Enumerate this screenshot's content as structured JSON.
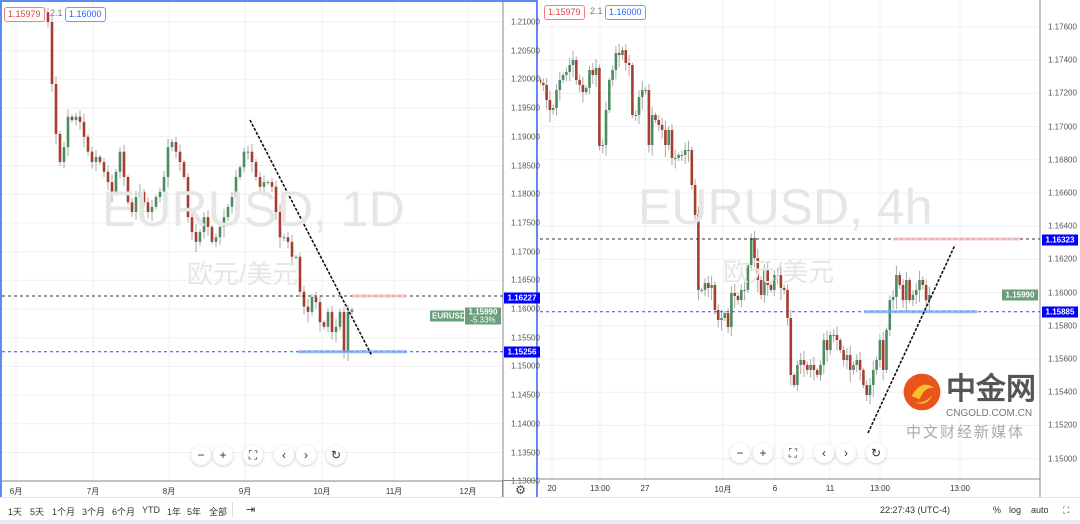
{
  "symbol": "EURUSD",
  "left": {
    "watermark_title": "EURUSD, 1D",
    "watermark_sub": "欧元/美元",
    "bid": "1.15979",
    "spread": "2.1",
    "ask": "1.16000",
    "axis_ticks": [
      "1.21000",
      "1.20500",
      "1.20000",
      "1.19500",
      "1.19000",
      "1.18500",
      "1.18000",
      "1.17500",
      "1.17000",
      "1.16500",
      "1.16000",
      "1.15500",
      "1.15000",
      "1.14500",
      "1.14000",
      "1.13500",
      "1.13000"
    ],
    "time_labels": [
      "6月",
      "7月",
      "8月",
      "9月",
      "10月",
      "11月",
      "12月"
    ],
    "price_label_symbol": "EURUSD",
    "last_price": "1.15990",
    "change": "-5.33%",
    "level_high": "1.16227",
    "level_low": "1.15256",
    "closes": [
      1.2117,
      1.21,
      1.1992,
      1.1905,
      1.1856,
      1.1882,
      1.1935,
      1.1929,
      1.1935,
      1.1926,
      1.19,
      1.1874,
      1.1856,
      1.1865,
      1.1856,
      1.1839,
      1.1821,
      1.1804,
      1.1839,
      1.1874,
      1.183,
      1.1786,
      1.1769,
      1.1795,
      1.1804,
      1.1786,
      1.1769,
      1.1778,
      1.1795,
      1.1804,
      1.183,
      1.1882,
      1.1891,
      1.1874,
      1.1856,
      1.183,
      1.176,
      1.1734,
      1.1717,
      1.1734,
      1.176,
      1.1743,
      1.1717,
      1.1725,
      1.1743,
      1.176,
      1.1778,
      1.1795,
      1.183,
      1.1847,
      1.1874,
      1.1874,
      1.1856,
      1.183,
      1.1813,
      1.1821,
      1.1821,
      1.1813,
      1.1769,
      1.1725,
      1.1725,
      1.1717,
      1.1691,
      1.1691,
      1.163,
      1.1604,
      1.1595,
      1.1621,
      1.1612,
      1.1577,
      1.1569,
      1.1595,
      1.156,
      1.1569,
      1.1595,
      1.1525,
      1.1595,
      1.1599
    ]
  },
  "right": {
    "watermark_title": "EURUSD, 4h",
    "watermark_sub": "欧元/美元",
    "bid": "1.15979",
    "spread": "2.1",
    "ask": "1.16000",
    "axis_ticks": [
      "1.17600",
      "1.17400",
      "1.17200",
      "1.17000",
      "1.16800",
      "1.16600",
      "1.16400",
      "1.16200",
      "1.16000",
      "1.15800",
      "1.15600",
      "1.15400",
      "1.15200",
      "1.15000"
    ],
    "time_labels": [
      "20",
      "13:00",
      "27",
      "10月",
      "6",
      "11",
      "13:00",
      "13:00"
    ],
    "last_price": "1.15990",
    "level_high": "1.16323",
    "level_low": "1.15885",
    "closes": [
      1.17263,
      1.17251,
      1.1716,
      1.171,
      1.17112,
      1.1722,
      1.17281,
      1.17311,
      1.17329,
      1.17371,
      1.17401,
      1.17281,
      1.17251,
      1.17208,
      1.17233,
      1.17341,
      1.17311,
      1.17353,
      1.16883,
      1.16889,
      1.171,
      1.17281,
      1.17341,
      1.17443,
      1.17431,
      1.17461,
      1.17383,
      1.17371,
      1.1707,
      1.1707,
      1.17178,
      1.1722,
      1.1722,
      1.16889,
      1.1707,
      1.1704,
      1.1701,
      1.1698,
      1.16889,
      1.1698,
      1.16811,
      1.16811,
      1.16829,
      1.16829,
      1.16859,
      1.16859,
      1.16648,
      1.16468,
      1.16016,
      1.16016,
      1.16058,
      1.16028,
      1.16046,
      1.15895,
      1.15835,
      1.15847,
      1.15877,
      1.15793,
      1.15998,
      1.1598,
      1.15955,
      1.16016,
      1.16016,
      1.16166,
      1.16329,
      1.16208,
      1.16076,
      1.15986,
      1.16136,
      1.16046,
      1.16016,
      1.16106,
      1.16106,
      1.16028,
      1.16016,
      1.15847,
      1.15504,
      1.15443,
      1.15564,
      1.15594,
      1.15564,
      1.15534,
      1.15564,
      1.15534,
      1.15504,
      1.15564,
      1.15714,
      1.15654,
      1.15745,
      1.15745,
      1.15714,
      1.15654,
      1.15594,
      1.15624,
      1.15534,
      1.15564,
      1.15594,
      1.15534,
      1.15443,
      1.15383,
      1.15443,
      1.15534,
      1.15594,
      1.15714,
      1.15534,
      1.15775,
      1.15955,
      1.15974,
      1.16106,
      1.16046,
      1.15955,
      1.16076,
      1.15955,
      1.15986,
      1.16016,
      1.16076,
      1.16046,
      1.15955,
      1.15986
    ]
  },
  "nav_icons": [
    "minus-icon",
    "plus-icon",
    "fullscreen-icon",
    "chevron-left-icon",
    "chevron-right-icon",
    "reset-icon"
  ],
  "bottom": {
    "ranges": [
      "1天",
      "5天",
      "1个月",
      "3个月",
      "6个月",
      "YTD",
      "1年",
      "5年",
      "全部"
    ],
    "time": "22:27:43 (UTC-4)",
    "percent": "%",
    "log": "log",
    "auto": "auto"
  },
  "logo": {
    "name": "中金网",
    "domain": "CNGOLD.COM.CN",
    "tagline": "中文财经新媒体"
  },
  "colors": {
    "up": "#4c8c63",
    "down": "#a63d2e",
    "level_blue": "#0000ff",
    "last_green": "#6a9f7b",
    "accent": "#5b8cf5"
  }
}
